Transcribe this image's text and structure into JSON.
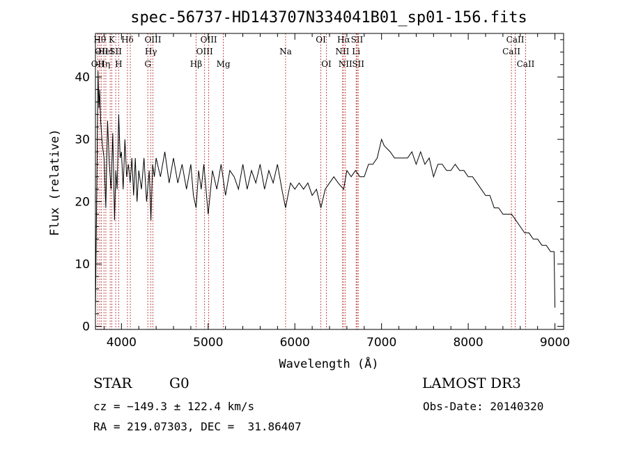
{
  "chart_data": {
    "type": "line",
    "title": "spec-56737-HD143707N334041B01_sp01-156.fits",
    "xlabel": "Wavelength (Å)",
    "ylabel": "Flux (relative)",
    "xlim": [
      3700,
      9100
    ],
    "ylim": [
      -0.5,
      47
    ],
    "xticks": [
      4000,
      5000,
      6000,
      7000,
      8000,
      9000
    ],
    "yticks": [
      0,
      10,
      20,
      30,
      40
    ],
    "grid": false,
    "series": [
      {
        "x": [
          3700,
          3710,
          3720,
          3730,
          3740,
          3750,
          3760,
          3780,
          3800,
          3820,
          3840,
          3860,
          3880,
          3900,
          3920,
          3935,
          3950,
          3968,
          3985,
          4000,
          4020,
          4040,
          4060,
          4080,
          4101,
          4120,
          4140,
          4160,
          4180,
          4200,
          4230,
          4260,
          4290,
          4320,
          4340,
          4360,
          4380,
          4400,
          4450,
          4500,
          4550,
          4600,
          4650,
          4700,
          4750,
          4800,
          4830,
          4861,
          4890,
          4920,
          4950,
          5000,
          5050,
          5100,
          5150,
          5200,
          5250,
          5300,
          5350,
          5400,
          5450,
          5500,
          5550,
          5600,
          5650,
          5700,
          5750,
          5800,
          5850,
          5893,
          5920,
          5950,
          6000,
          6050,
          6100,
          6150,
          6200,
          6250,
          6300,
          6350,
          6400,
          6450,
          6500,
          6563,
          6600,
          6650,
          6700,
          6750,
          6800,
          6850,
          6900,
          6950,
          7000,
          7030,
          7100,
          7150,
          7200,
          7250,
          7300,
          7350,
          7400,
          7450,
          7500,
          7550,
          7600,
          7650,
          7700,
          7750,
          7800,
          7850,
          7900,
          7950,
          8000,
          8050,
          8100,
          8150,
          8200,
          8250,
          8300,
          8350,
          8400,
          8450,
          8500,
          8550,
          8600,
          8650,
          8700,
          8750,
          8800,
          8850,
          8900,
          8950,
          8990,
          9000
        ],
        "y": [
          2,
          15,
          28,
          41,
          35,
          38,
          33,
          29,
          27,
          19,
          33,
          26,
          22,
          31,
          17,
          25,
          22,
          34,
          27,
          28,
          22,
          30,
          24,
          26,
          23,
          27,
          21,
          27,
          20,
          25,
          22,
          27,
          20,
          25,
          17,
          26,
          24,
          27,
          24,
          28,
          23,
          27,
          23,
          26,
          22,
          26,
          21,
          19,
          25,
          22,
          26,
          18,
          25,
          22,
          26,
          21,
          25,
          24,
          22,
          26,
          22,
          25,
          23,
          26,
          22,
          25,
          23,
          26,
          22,
          19,
          21,
          23,
          22,
          23,
          22,
          23,
          21,
          22,
          19,
          22,
          23,
          24,
          23,
          22,
          25,
          24,
          25,
          24,
          24,
          26,
          26,
          27,
          30,
          29,
          28,
          27,
          27,
          27,
          27,
          28,
          26,
          28,
          26,
          27,
          24,
          26,
          26,
          25,
          25,
          26,
          25,
          25,
          24,
          24,
          23,
          22,
          21,
          21,
          19,
          19,
          18,
          18,
          18,
          17,
          16,
          15,
          15,
          14,
          14,
          13,
          13,
          12,
          12,
          3
        ]
      }
    ],
    "line_markers": [
      {
        "w": 3727,
        "labels": [
          {
            "t": "OII",
            "row": 2
          }
        ]
      },
      {
        "w": 3750,
        "labels": [
          {
            "t": "Hθ",
            "row": 0
          }
        ]
      },
      {
        "w": 3770,
        "labels": [
          {
            "t": "OII",
            "row": 1
          }
        ]
      },
      {
        "w": 3798,
        "labels": [
          {
            "t": "Hη",
            "row": 2
          }
        ]
      },
      {
        "w": 3820,
        "labels": [
          {
            "t": "HeI",
            "row": 1
          }
        ]
      },
      {
        "w": 3870,
        "labels": []
      },
      {
        "w": 3889,
        "labels": [
          {
            "t": "K",
            "row": 0
          }
        ]
      },
      {
        "w": 3934,
        "labels": [
          {
            "t": "SII",
            "row": 1
          }
        ]
      },
      {
        "w": 3968,
        "labels": [
          {
            "t": "H",
            "row": 2
          }
        ]
      },
      {
        "w": 4069,
        "labels": [
          {
            "t": "Hδ",
            "row": 0
          }
        ]
      },
      {
        "w": 4102,
        "labels": []
      },
      {
        "w": 4304,
        "labels": [
          {
            "t": "G",
            "row": 2
          }
        ]
      },
      {
        "w": 4340,
        "labels": [
          {
            "t": "Hγ",
            "row": 1
          }
        ]
      },
      {
        "w": 4363,
        "labels": [
          {
            "t": "OIII",
            "row": 0
          }
        ]
      },
      {
        "w": 4861,
        "labels": [
          {
            "t": "Hβ",
            "row": 2
          }
        ]
      },
      {
        "w": 4959,
        "labels": [
          {
            "t": "OIII",
            "row": 1
          }
        ]
      },
      {
        "w": 5007,
        "labels": [
          {
            "t": "OIII",
            "row": 0
          }
        ]
      },
      {
        "w": 5175,
        "labels": [
          {
            "t": "Mg",
            "row": 2
          }
        ]
      },
      {
        "w": 5893,
        "labels": [
          {
            "t": "Na",
            "row": 1
          }
        ]
      },
      {
        "w": 6300,
        "labels": [
          {
            "t": "OI",
            "row": 0
          }
        ]
      },
      {
        "w": 6364,
        "labels": [
          {
            "t": "OI",
            "row": 2
          }
        ]
      },
      {
        "w": 6548,
        "labels": [
          {
            "t": "NII",
            "row": 1
          }
        ]
      },
      {
        "w": 6563,
        "labels": [
          {
            "t": "Hα",
            "row": 0
          }
        ]
      },
      {
        "w": 6583,
        "labels": [
          {
            "t": "NII",
            "row": 2
          }
        ]
      },
      {
        "w": 6707,
        "labels": [
          {
            "t": "Li",
            "row": 1
          }
        ]
      },
      {
        "w": 6717,
        "labels": [
          {
            "t": "SII",
            "row": 0
          }
        ]
      },
      {
        "w": 6731,
        "labels": [
          {
            "t": "SII",
            "row": 2
          }
        ]
      },
      {
        "w": 8498,
        "labels": [
          {
            "t": "CaII",
            "row": 1
          }
        ]
      },
      {
        "w": 8542,
        "labels": [
          {
            "t": "CaII",
            "row": 0
          }
        ]
      },
      {
        "w": 8662,
        "labels": [
          {
            "t": "CaII",
            "row": 2
          }
        ]
      }
    ],
    "colors": {
      "spectrum": "#000000",
      "markers": "#b22222",
      "axes": "#000000"
    }
  },
  "info": {
    "object_class": "STAR",
    "subclass": "G0",
    "survey": "LAMOST DR3",
    "cz": "cz = −149.3 ± 122.4 km/s",
    "obs_date": "Obs-Date: 20140320",
    "coords": "RA = 219.07303, DEC =  31.86407"
  }
}
